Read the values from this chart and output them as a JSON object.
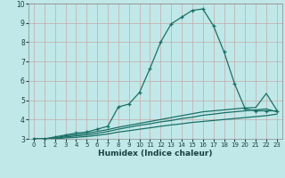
{
  "xlabel": "Humidex (Indice chaleur)",
  "bg_color": "#c0e8e8",
  "grid_color": "#a8d4d4",
  "line_color": "#1a7068",
  "xlim": [
    -0.5,
    23.5
  ],
  "ylim": [
    3,
    10
  ],
  "xticks": [
    0,
    1,
    2,
    3,
    4,
    5,
    6,
    7,
    8,
    9,
    10,
    11,
    12,
    13,
    14,
    15,
    16,
    17,
    18,
    19,
    20,
    21,
    22,
    23
  ],
  "yticks": [
    3,
    4,
    5,
    6,
    7,
    8,
    9,
    10
  ],
  "line1_x": [
    0,
    1,
    2,
    3,
    4,
    5,
    6,
    7,
    8,
    9,
    10,
    11,
    12,
    13,
    14,
    15,
    16,
    17,
    18,
    19,
    20,
    21,
    22,
    23
  ],
  "line1_y": [
    3.0,
    3.0,
    3.1,
    3.2,
    3.3,
    3.35,
    3.5,
    3.65,
    4.65,
    4.8,
    5.4,
    6.65,
    8.0,
    8.95,
    9.3,
    9.65,
    9.72,
    8.85,
    7.5,
    5.85,
    4.55,
    4.45,
    4.45,
    4.45
  ],
  "line2_x": [
    0,
    1,
    2,
    3,
    4,
    5,
    6,
    7,
    8,
    9,
    10,
    11,
    12,
    13,
    14,
    15,
    16,
    17,
    18,
    19,
    20,
    21,
    22,
    23
  ],
  "line2_y": [
    3.0,
    3.0,
    3.05,
    3.15,
    3.22,
    3.28,
    3.38,
    3.48,
    3.6,
    3.7,
    3.8,
    3.9,
    4.0,
    4.1,
    4.2,
    4.3,
    4.4,
    4.45,
    4.5,
    4.55,
    4.6,
    4.62,
    5.35,
    4.48
  ],
  "line3_x": [
    0,
    1,
    2,
    3,
    4,
    5,
    6,
    7,
    8,
    9,
    10,
    11,
    12,
    13,
    14,
    15,
    16,
    17,
    18,
    19,
    20,
    21,
    22,
    23
  ],
  "line3_y": [
    3.0,
    3.0,
    3.02,
    3.1,
    3.15,
    3.2,
    3.28,
    3.38,
    3.5,
    3.6,
    3.7,
    3.78,
    3.88,
    3.95,
    4.05,
    4.12,
    4.22,
    4.28,
    4.35,
    4.4,
    4.45,
    4.5,
    4.55,
    4.4
  ],
  "line4_x": [
    0,
    1,
    2,
    3,
    4,
    5,
    6,
    7,
    8,
    9,
    10,
    11,
    12,
    13,
    14,
    15,
    16,
    17,
    18,
    19,
    20,
    21,
    22,
    23
  ],
  "line4_y": [
    3.0,
    3.0,
    3.0,
    3.05,
    3.08,
    3.12,
    3.18,
    3.25,
    3.35,
    3.42,
    3.5,
    3.57,
    3.65,
    3.72,
    3.78,
    3.85,
    3.9,
    3.95,
    4.0,
    4.05,
    4.1,
    4.15,
    4.2,
    4.28
  ]
}
